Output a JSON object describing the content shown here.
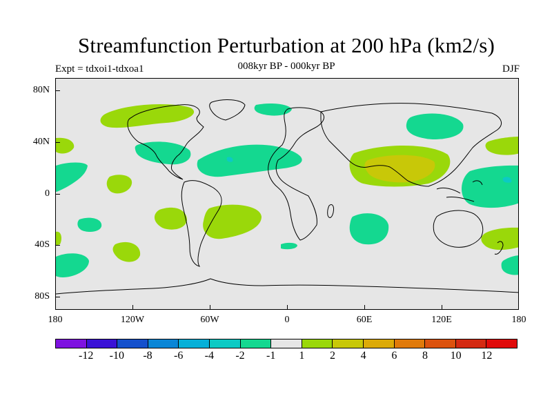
{
  "title": "Streamfunction Perturbation at 200 hPa (km2/s)",
  "subtitle": "008kyr BP - 000kyr BP",
  "expt_label": "Expt = tdxoi1-tdxoa1",
  "season": "DJF",
  "lat_labels": [
    "80N",
    "40N",
    "0",
    "40S",
    "80S"
  ],
  "lon_labels": [
    "180",
    "120W",
    "60W",
    "0",
    "60E",
    "120E",
    "180"
  ],
  "colorbar": {
    "labels": [
      "-12",
      "-10",
      "-8",
      "-6",
      "-4",
      "-2",
      "-1",
      "1",
      "2",
      "4",
      "6",
      "8",
      "10",
      "12"
    ],
    "colors": [
      "#7e12e0",
      "#3a12d6",
      "#1450cc",
      "#0a86d6",
      "#06b0d8",
      "#0ccac4",
      "#14d890",
      "#e6e6e6",
      "#9ad80a",
      "#c8c808",
      "#dcaa08",
      "#e07a0a",
      "#dc520e",
      "#d42a12",
      "#e00a0a"
    ]
  },
  "anomaly_colors": {
    "negative_1_2": "#14d890",
    "negative_2_4": "#0ccac4",
    "positive_1_2": "#9ad80a",
    "positive_2_4": "#c8c808"
  }
}
